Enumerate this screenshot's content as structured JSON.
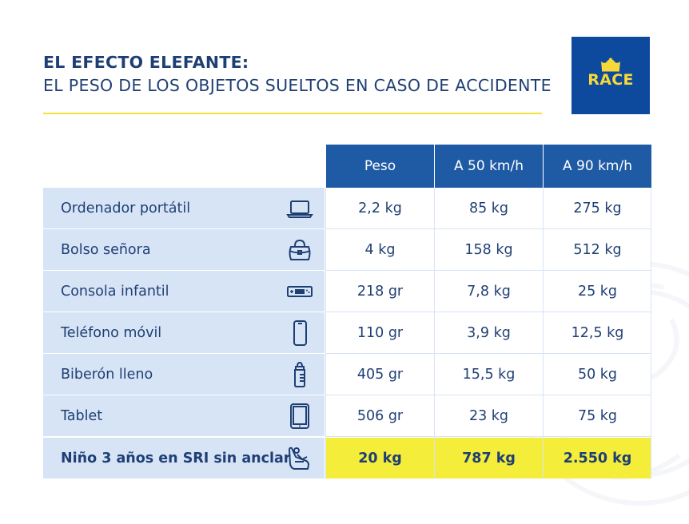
{
  "header": {
    "title_line1": "EL EFECTO ELEFANTE:",
    "title_line2": "EL PESO DE LOS OBJETOS SUELTOS EN CASO DE ACCIDENTE"
  },
  "logo": {
    "text": "RACE",
    "background": "#0d4a9e",
    "text_color": "#f7d83a"
  },
  "colors": {
    "title": "#1f3f74",
    "title_rule": "#efe33c",
    "header_bg": "#1f5aa5",
    "row_label_bg": "#d7e4f6",
    "highlight_bg": "#f4ee3a"
  },
  "table": {
    "columns": [
      "Peso",
      "A 50 km/h",
      "A 90 km/h"
    ],
    "rows": [
      {
        "label": "Ordenador portátil",
        "icon": "laptop-icon",
        "values": [
          "2,2 kg",
          "85 kg",
          "275 kg"
        ]
      },
      {
        "label": "Bolso señora",
        "icon": "handbag-icon",
        "values": [
          "4 kg",
          "158 kg",
          "512 kg"
        ]
      },
      {
        "label": "Consola infantil",
        "icon": "game-console-icon",
        "values": [
          "218 gr",
          "7,8 kg",
          "25 kg"
        ]
      },
      {
        "label": "Teléfono móvil",
        "icon": "mobile-phone-icon",
        "values": [
          "110 gr",
          "3,9 kg",
          "12,5 kg"
        ]
      },
      {
        "label": "Biberón lleno",
        "icon": "baby-bottle-icon",
        "values": [
          "405 gr",
          "15,5 kg",
          "50 kg"
        ]
      },
      {
        "label": "Tablet",
        "icon": "tablet-icon",
        "values": [
          "506 gr",
          "23 kg",
          "75 kg"
        ]
      },
      {
        "label": "Niño 3 años en SRI sin anclar",
        "icon": "child-seat-icon",
        "values": [
          "20 kg",
          "787 kg",
          "2.550 kg"
        ]
      }
    ]
  }
}
